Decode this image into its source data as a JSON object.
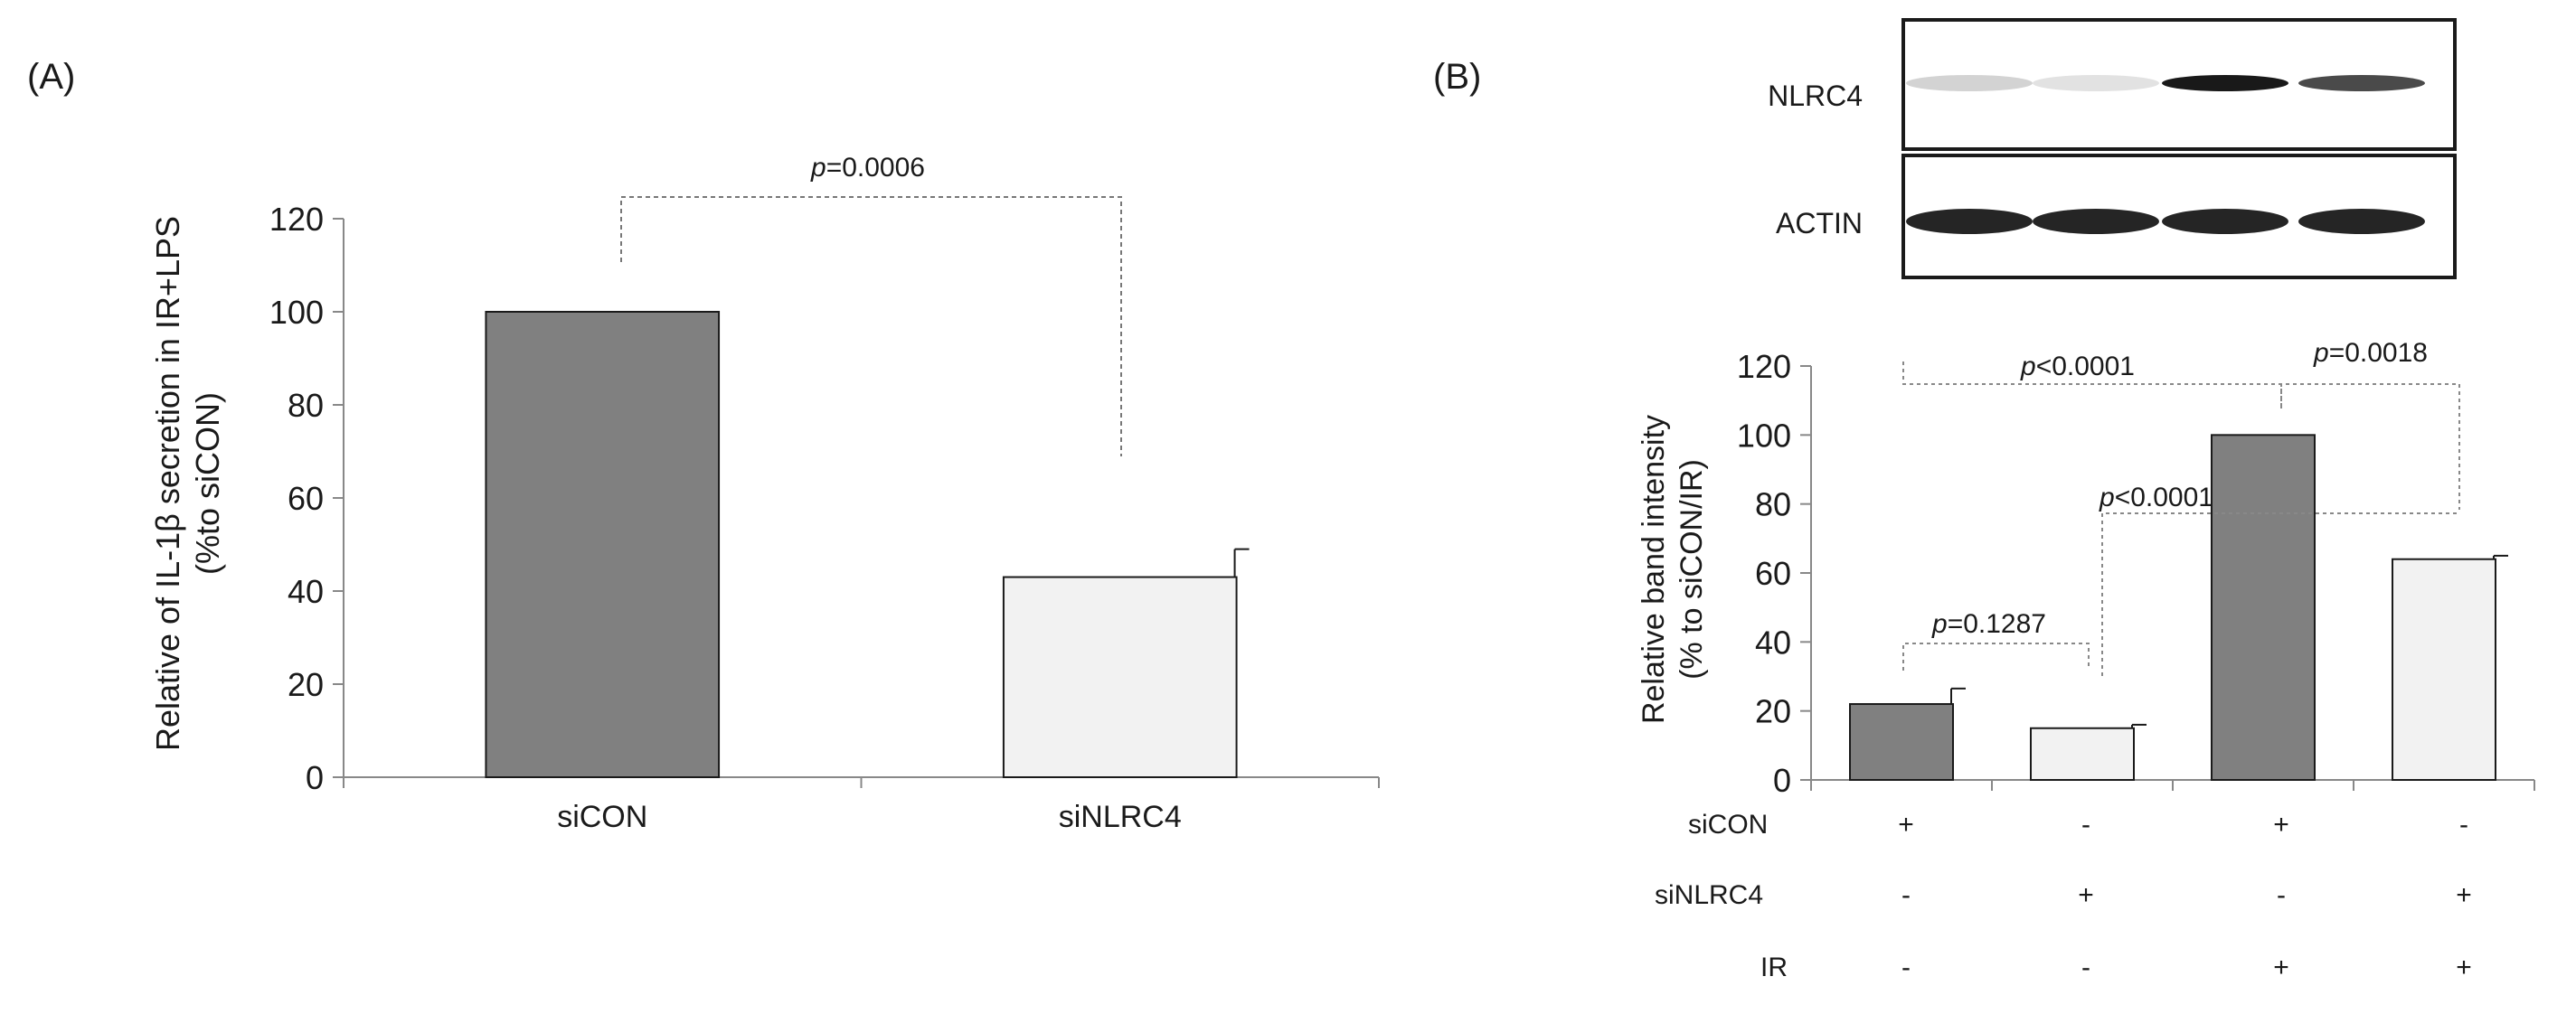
{
  "panel_a": {
    "label": "(A)",
    "ylabel_line1": "Relative of IL-1β secretion in IR+LPS",
    "ylabel_line2": "(%to siCON)",
    "p_label": "p",
    "p_value": "=0.0006"
  },
  "panel_b": {
    "label": "(B)",
    "blot_labels": [
      "NLRC4",
      "ACTIN"
    ],
    "nlrc4_band_strength": [
      0.18,
      0.12,
      0.95,
      0.75
    ],
    "actin_band_strength": [
      0.9,
      0.9,
      0.9,
      0.9
    ],
    "ylabel_line1": "Relative band intensity",
    "ylabel_line2": "(% to siCON/IR)",
    "condition_table": {
      "rows": [
        {
          "name": "siCON",
          "signs": [
            "+",
            "-",
            "+",
            "-"
          ]
        },
        {
          "name": "siNLRC4",
          "signs": [
            "-",
            "+",
            "-",
            "+"
          ]
        },
        {
          "name": "IR",
          "signs": [
            "-",
            "-",
            "+",
            "+"
          ]
        }
      ]
    },
    "comparisons": [
      {
        "p": "p",
        "text": "<0.0001"
      },
      {
        "p": "p",
        "text": "=0.0018"
      },
      {
        "p": "p",
        "text": "<0.0001"
      },
      {
        "p": "p",
        "text": "=0.1287"
      }
    ]
  },
  "chart_data": [
    {
      "type": "bar",
      "title": "",
      "xlabel": "",
      "ylabel": "Relative of IL-1β secretion in IR+LPS (%to siCON)",
      "ylim": [
        0,
        120
      ],
      "yticks": [
        0,
        20,
        40,
        60,
        80,
        100,
        120
      ],
      "categories": [
        "siCON",
        "siNLRC4"
      ],
      "values": [
        100,
        43
      ],
      "errors": [
        0,
        6
      ],
      "colors": [
        "#808080",
        "#f2f2f2"
      ],
      "annotations": [
        {
          "between": [
            0,
            1
          ],
          "text": "p=0.0006"
        }
      ],
      "grid": false
    },
    {
      "type": "bar",
      "title": "",
      "xlabel": "",
      "ylabel": "Relative band intensity (% to siCON/IR)",
      "ylim": [
        0,
        120
      ],
      "yticks": [
        0,
        20,
        40,
        60,
        80,
        100,
        120
      ],
      "categories": [
        "siCON/-/-",
        "siNLRC4/-/-",
        "siCON/+IR",
        "siNLRC4/+IR"
      ],
      "values": [
        22,
        15,
        100,
        64
      ],
      "errors": [
        4.5,
        1,
        0,
        1
      ],
      "colors": [
        "#808080",
        "#f2f2f2",
        "#808080",
        "#f2f2f2"
      ],
      "annotations": [
        {
          "between": [
            0,
            2
          ],
          "text": "p<0.0001"
        },
        {
          "between": [
            2,
            3
          ],
          "text": "p=0.0018"
        },
        {
          "between": [
            1,
            3
          ],
          "text": "p<0.0001"
        },
        {
          "between": [
            0,
            1
          ],
          "text": "p=0.1287"
        }
      ],
      "grid": false
    }
  ]
}
